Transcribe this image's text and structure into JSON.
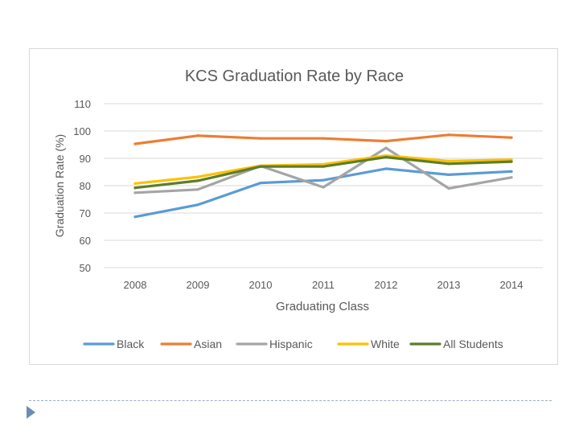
{
  "chart_data": {
    "type": "line",
    "title": "KCS Graduation Rate by Race",
    "xlabel": "Graduating Class",
    "ylabel": "Graduation Rate (%)",
    "ylim": [
      50,
      110
    ],
    "yticks": [
      50,
      60,
      70,
      80,
      90,
      100,
      110
    ],
    "grid": true,
    "legend_position": "bottom",
    "categories": [
      "2008",
      "2009",
      "2010",
      "2011",
      "2012",
      "2013",
      "2014"
    ],
    "series": [
      {
        "name": "Black",
        "color": "#5b9bd5",
        "values": [
          68.6,
          73.0,
          81.0,
          82.0,
          86.2,
          84.0,
          85.2
        ]
      },
      {
        "name": "Asian",
        "color": "#ed7d31",
        "values": [
          95.3,
          98.3,
          97.3,
          97.3,
          96.3,
          98.6,
          97.6
        ]
      },
      {
        "name": "Hispanic",
        "color": "#a5a5a5",
        "values": [
          77.4,
          78.6,
          87.2,
          79.4,
          93.8,
          79.0,
          83.0
        ]
      },
      {
        "name": "White",
        "color": "#ffc000",
        "values": [
          80.8,
          83.2,
          87.3,
          87.8,
          91.0,
          89.0,
          89.5
        ]
      },
      {
        "name": "All Students",
        "color": "#5b7e2b",
        "values": [
          79.2,
          81.8,
          87.0,
          87.0,
          90.4,
          88.0,
          88.8
        ]
      }
    ]
  }
}
